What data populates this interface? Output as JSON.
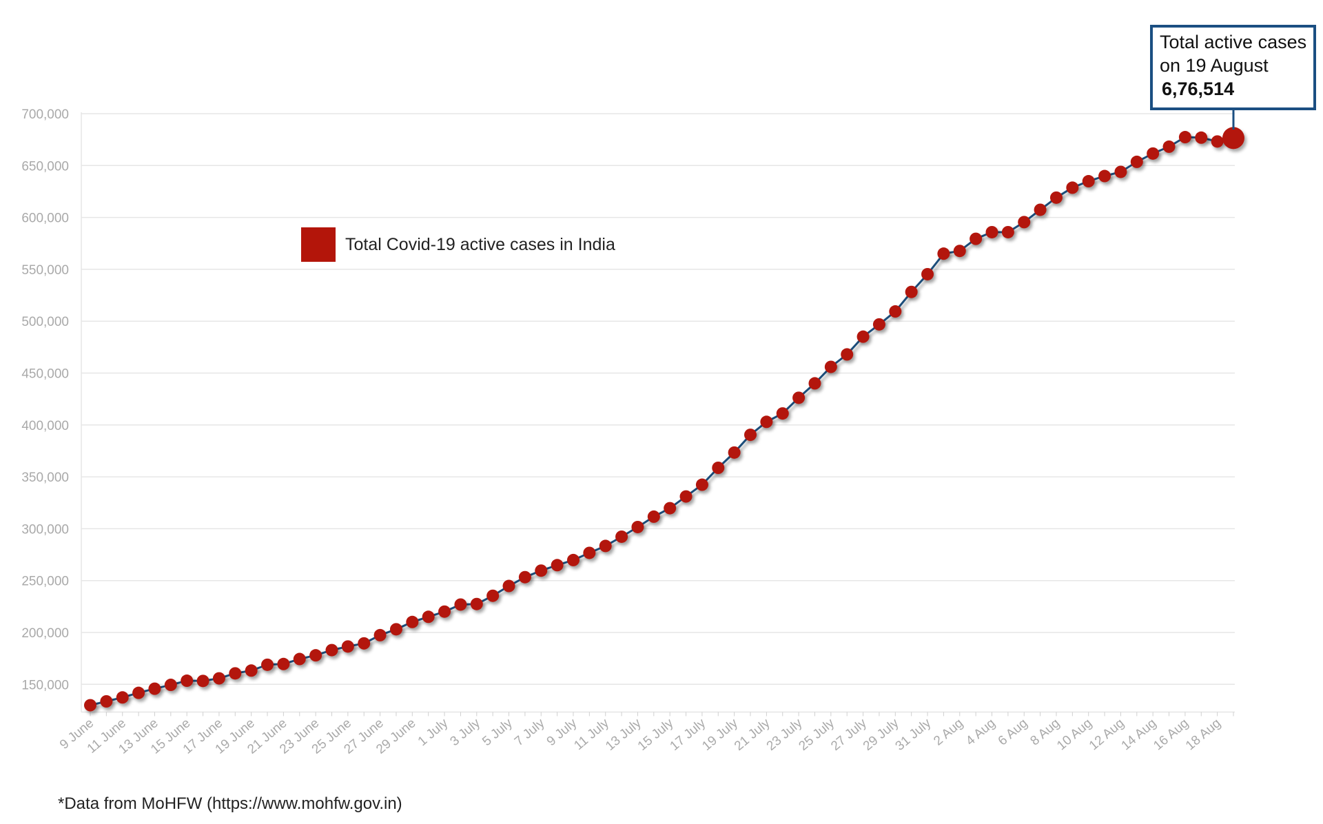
{
  "chart_data": {
    "type": "line",
    "legend": "Total Covid-19 active cases in India",
    "legend_placement": "upper-left",
    "colors": {
      "marker": "#b3150a",
      "line": "#1f4e7a",
      "grid": "#e6e6e6",
      "callout_border": "#1b4f82",
      "axis_text": "#a9a9a9"
    },
    "grid": true,
    "ylim": [
      126000,
      700000
    ],
    "yticks": [
      "700,000",
      "650,000",
      "600,000",
      "550,000",
      "500,000",
      "450,000",
      "400,000",
      "350,000",
      "300,000",
      "250,000",
      "200,000",
      "150,000"
    ],
    "ytick_values": [
      700000,
      650000,
      600000,
      550000,
      500000,
      450000,
      400000,
      350000,
      300000,
      250000,
      200000,
      150000
    ],
    "xtick_labels": [
      "9 June",
      "11 June",
      "13 June",
      "15 June",
      "17 June",
      "19 June",
      "21 June",
      "23 June",
      "25 June",
      "27 June",
      "29 June",
      "1 July",
      "3 July",
      "5 July",
      "7 July",
      "9 July",
      "11 July",
      "13 July",
      "15 July",
      "17 July",
      "19 July",
      "21 July",
      "23 July",
      "25 July",
      "27 July",
      "29 July",
      "31 July",
      "2 Aug",
      "4 Aug",
      "6 Aug",
      "8 Aug",
      "10 Aug",
      "12 Aug",
      "14 Aug",
      "16 Aug",
      "18 Aug"
    ],
    "x_start": "9 June",
    "x_end": "19 August",
    "values": [
      129900,
      133600,
      137400,
      141800,
      145800,
      149500,
      153500,
      153300,
      155800,
      160600,
      163300,
      168900,
      169600,
      174400,
      178000,
      183000,
      186500,
      189500,
      197400,
      203100,
      210100,
      215100,
      220100,
      226900,
      227400,
      235400,
      244800,
      253300,
      259600,
      264900,
      269800,
      276700,
      283400,
      292300,
      301600,
      311600,
      319800,
      331100,
      342400,
      358700,
      373400,
      390500,
      403000,
      411100,
      426200,
      440100,
      456000,
      468000,
      485100,
      496900,
      509400,
      528200,
      545300,
      565100,
      567700,
      579400,
      585800,
      585800,
      595500,
      607400,
      619100,
      628700,
      634900,
      639900,
      643900,
      653600,
      661600,
      668200,
      677400,
      676900,
      673200,
      676514
    ],
    "annotation": {
      "line1": "Total active cases",
      "line2": "on 19 August",
      "value": "6,76,514"
    }
  },
  "footnote": "*Data from MoHFW (https://www.mohfw.gov.in)"
}
